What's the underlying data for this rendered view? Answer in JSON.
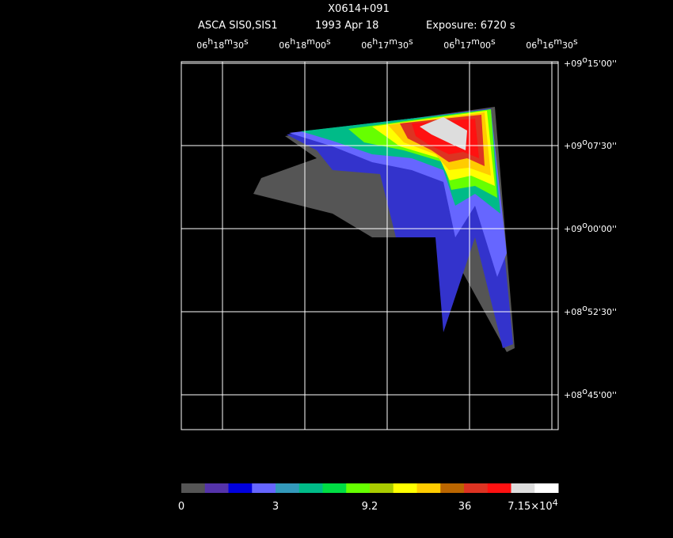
{
  "header": {
    "title": "X0614+091",
    "instrument": "ASCA SIS0,SIS1",
    "date": "1993 Apr 18",
    "exposure": "Exposure: 6720 s"
  },
  "ra_labels": [
    [
      "06",
      "h",
      "18",
      "m",
      "30",
      "s"
    ],
    [
      "06",
      "h",
      "18",
      "m",
      "00",
      "s"
    ],
    [
      "06",
      "h",
      "17",
      "m",
      "30",
      "s"
    ],
    [
      "06",
      "h",
      "17",
      "m",
      "00",
      "s"
    ],
    [
      "06",
      "h",
      "16",
      "m",
      "30",
      "s"
    ]
  ],
  "dec_labels": [
    [
      "+09",
      "o",
      "15'00''"
    ],
    [
      "+09",
      "o",
      "07'30''"
    ],
    [
      "+09",
      "o",
      "00'00''"
    ],
    [
      "+08",
      "o",
      "52'30''"
    ],
    [
      "+08",
      "o",
      "45'00''"
    ]
  ],
  "colorbar": {
    "colors": [
      "#555555",
      "#5533aa",
      "#0000dd",
      "#6666ff",
      "#3399bb",
      "#00bb88",
      "#00dd44",
      "#66ff00",
      "#aacc00",
      "#ffff00",
      "#ffcc00",
      "#bb6600",
      "#dd3322",
      "#ff1111",
      "#dddddd",
      "#ffffff"
    ],
    "labels": [
      [
        "0"
      ],
      [
        "3"
      ],
      [
        "9.2"
      ],
      [
        "36"
      ],
      [
        "7.15×10",
        "4"
      ]
    ]
  }
}
